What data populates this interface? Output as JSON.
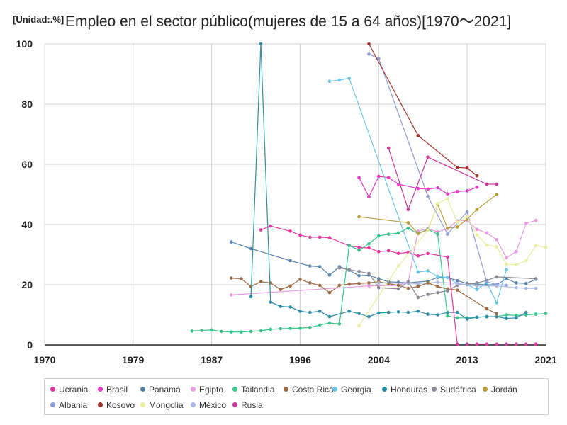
{
  "unit_label": "[Unidad:.%]",
  "title": "Empleo en el sector público(mujeres de 15 a 64 años)[1970～2021]",
  "chart_data": {
    "type": "line",
    "title": "Empleo en el sector público(mujeres de 15 a 64 años)[1970～2021]",
    "unit": "[Unidad:.%]",
    "xlim": [
      1970,
      2021
    ],
    "ylim": [
      0,
      100
    ],
    "x_ticks": [
      1970,
      1979,
      1987,
      1996,
      2004,
      2013,
      2021
    ],
    "y_ticks": [
      0,
      20,
      40,
      60,
      80,
      100
    ],
    "grid": true,
    "legend_position": "bottom",
    "series": [
      {
        "name": "Ucrania",
        "color": "#e2389e",
        "points": [
          [
            1992,
            38.2
          ],
          [
            1993,
            39.5
          ],
          [
            1995,
            37.8
          ],
          [
            1996,
            36.5
          ],
          [
            1997,
            35.8
          ],
          [
            1998,
            35.8
          ],
          [
            1999,
            35.6
          ],
          [
            2001,
            33.0
          ],
          [
            2002,
            32.4
          ],
          [
            2003,
            32.2
          ],
          [
            2004,
            31.0
          ],
          [
            2005,
            31.3
          ],
          [
            2006,
            30.4
          ],
          [
            2007,
            30.8
          ],
          [
            2008,
            29.6
          ],
          [
            2009,
            30.4
          ],
          [
            2011,
            29.2
          ]
        ]
      },
      {
        "name": "Brasil",
        "color": "#e838c6",
        "points": [
          [
            2002,
            55.6
          ],
          [
            2003,
            49.2
          ],
          [
            2004,
            56.0
          ],
          [
            2005,
            55.6
          ],
          [
            2006,
            53.4
          ],
          [
            2008,
            52.0
          ],
          [
            2009,
            51.8
          ],
          [
            2010,
            52.2
          ],
          [
            2011,
            50.2
          ],
          [
            2012,
            51.0
          ],
          [
            2013,
            51.2
          ],
          [
            2014,
            52.4
          ]
        ]
      },
      {
        "name": "Panamá",
        "color": "#5b84ad",
        "points": [
          [
            1989,
            34.2
          ],
          [
            1991,
            32.0
          ],
          [
            1995,
            28.0
          ],
          [
            1997,
            26.2
          ],
          [
            1998,
            26.0
          ],
          [
            1999,
            23.2
          ],
          [
            2000,
            26.0
          ],
          [
            2001,
            24.8
          ],
          [
            2002,
            23.0
          ],
          [
            2003,
            23.2
          ],
          [
            2004,
            22.0
          ],
          [
            2005,
            21.0
          ],
          [
            2006,
            20.8
          ],
          [
            2007,
            20.6
          ],
          [
            2009,
            21.2
          ],
          [
            2010,
            22.4
          ],
          [
            2011,
            22.4
          ],
          [
            2012,
            21.4
          ],
          [
            2013,
            20.4
          ],
          [
            2014,
            20.2
          ],
          [
            2015,
            20.0
          ],
          [
            2016,
            20.0
          ],
          [
            2017,
            22.0
          ],
          [
            2018,
            20.6
          ],
          [
            2019,
            20.4
          ],
          [
            2020,
            21.8
          ]
        ]
      },
      {
        "name": "Egipto",
        "color": "#ea9ae0",
        "points": [
          [
            1989,
            16.6
          ],
          [
            2003,
            19.6
          ],
          [
            2006,
            19.8
          ],
          [
            2007,
            21.0
          ],
          [
            2008,
            37.8
          ],
          [
            2009,
            38.6
          ],
          [
            2010,
            37.6
          ],
          [
            2011,
            38.6
          ],
          [
            2012,
            41.2
          ],
          [
            2013,
            41.4
          ],
          [
            2014,
            38.4
          ],
          [
            2015,
            37.2
          ],
          [
            2016,
            35.0
          ],
          [
            2017,
            29.0
          ],
          [
            2018,
            31.0
          ],
          [
            2019,
            40.4
          ],
          [
            2020,
            41.4
          ]
        ]
      },
      {
        "name": "Tailandia",
        "color": "#38c48a",
        "points": [
          [
            1985,
            4.6
          ],
          [
            1986,
            4.8
          ],
          [
            1987,
            5.0
          ],
          [
            1988,
            4.5
          ],
          [
            1989,
            4.3
          ],
          [
            1990,
            4.3
          ],
          [
            1991,
            4.5
          ],
          [
            1992,
            4.7
          ],
          [
            1993,
            5.2
          ],
          [
            1994,
            5.4
          ],
          [
            1995,
            5.5
          ],
          [
            1996,
            5.6
          ],
          [
            1997,
            5.8
          ],
          [
            1998,
            6.6
          ],
          [
            1999,
            7.3
          ],
          [
            2000,
            7.0
          ],
          [
            2001,
            33.0
          ],
          [
            2002,
            31.5
          ],
          [
            2003,
            33.6
          ],
          [
            2004,
            36.2
          ],
          [
            2005,
            36.8
          ],
          [
            2006,
            37.2
          ],
          [
            2007,
            38.8
          ],
          [
            2008,
            37.0
          ],
          [
            2009,
            38.4
          ],
          [
            2010,
            36.8
          ],
          [
            2011,
            9.6
          ],
          [
            2012,
            9.0
          ],
          [
            2013,
            9.0
          ],
          [
            2014,
            9.2
          ],
          [
            2015,
            9.4
          ],
          [
            2016,
            9.4
          ],
          [
            2017,
            10.0
          ],
          [
            2018,
            9.8
          ],
          [
            2019,
            10.0
          ],
          [
            2020,
            10.2
          ],
          [
            2021,
            10.4
          ]
        ]
      },
      {
        "name": "Costa Rica",
        "color": "#9c6a45",
        "points": [
          [
            1989,
            22.2
          ],
          [
            1990,
            22.0
          ],
          [
            1991,
            19.4
          ],
          [
            1992,
            21.0
          ],
          [
            1993,
            20.6
          ],
          [
            1994,
            18.4
          ],
          [
            1995,
            19.6
          ],
          [
            1996,
            21.8
          ],
          [
            1997,
            20.6
          ],
          [
            1998,
            19.8
          ],
          [
            1999,
            17.4
          ],
          [
            2000,
            19.8
          ],
          [
            2001,
            20.2
          ],
          [
            2002,
            20.4
          ],
          [
            2003,
            20.6
          ],
          [
            2004,
            21.0
          ],
          [
            2005,
            20.4
          ],
          [
            2006,
            19.8
          ],
          [
            2007,
            18.8
          ],
          [
            2008,
            19.4
          ],
          [
            2009,
            20.6
          ],
          [
            2010,
            19.4
          ],
          [
            2011,
            18.6
          ],
          [
            2012,
            18.2
          ],
          [
            2015,
            12.0
          ],
          [
            2016,
            10.4
          ]
        ]
      },
      {
        "name": "Georgia",
        "color": "#6cc6ea",
        "points": [
          [
            1999,
            87.6
          ],
          [
            2000,
            88.0
          ],
          [
            2001,
            88.6
          ],
          [
            2008,
            24.2
          ],
          [
            2009,
            24.6
          ],
          [
            2010,
            22.8
          ],
          [
            2011,
            22.4
          ],
          [
            2012,
            20.4
          ],
          [
            2013,
            20.0
          ],
          [
            2014,
            18.4
          ],
          [
            2015,
            20.8
          ],
          [
            2016,
            14.0
          ],
          [
            2017,
            25.0
          ]
        ]
      },
      {
        "name": "Honduras",
        "color": "#2e8ea6",
        "points": [
          [
            1991,
            16.0
          ],
          [
            1992,
            100.0
          ],
          [
            1993,
            14.2
          ],
          [
            1994,
            12.8
          ],
          [
            1995,
            12.6
          ],
          [
            1996,
            11.2
          ],
          [
            1997,
            10.8
          ],
          [
            1998,
            11.2
          ],
          [
            1999,
            9.4
          ],
          [
            2001,
            11.2
          ],
          [
            2002,
            10.4
          ],
          [
            2003,
            9.4
          ],
          [
            2004,
            10.6
          ],
          [
            2005,
            10.8
          ],
          [
            2006,
            11.0
          ],
          [
            2007,
            10.8
          ],
          [
            2008,
            11.2
          ],
          [
            2009,
            10.2
          ],
          [
            2010,
            10.0
          ],
          [
            2011,
            10.8
          ],
          [
            2012,
            10.8
          ],
          [
            2013,
            8.6
          ],
          [
            2014,
            9.2
          ],
          [
            2015,
            9.4
          ],
          [
            2016,
            9.4
          ],
          [
            2017,
            8.8
          ],
          [
            2018,
            9.0
          ],
          [
            2019,
            10.8
          ]
        ]
      },
      {
        "name": "Sudáfrica",
        "color": "#8a8a96",
        "points": [
          [
            2000,
            25.6
          ],
          [
            2001,
            25.0
          ],
          [
            2002,
            24.4
          ],
          [
            2003,
            23.8
          ],
          [
            2004,
            19.0
          ],
          [
            2006,
            18.6
          ],
          [
            2007,
            21.0
          ],
          [
            2008,
            15.8
          ],
          [
            2009,
            16.8
          ],
          [
            2010,
            17.4
          ],
          [
            2011,
            18.0
          ],
          [
            2012,
            19.8
          ],
          [
            2013,
            20.2
          ],
          [
            2014,
            20.6
          ],
          [
            2015,
            21.4
          ],
          [
            2016,
            22.6
          ],
          [
            2020,
            22.0
          ]
        ]
      },
      {
        "name": "Jordán",
        "color": "#b89e3a",
        "points": [
          [
            2002,
            42.6
          ],
          [
            2007,
            40.6
          ],
          [
            2008,
            37.0
          ],
          [
            2009,
            38.2
          ],
          [
            2010,
            46.8
          ],
          [
            2011,
            38.8
          ],
          [
            2012,
            39.2
          ],
          [
            2013,
            41.8
          ],
          [
            2014,
            45.0
          ],
          [
            2016,
            50.0
          ]
        ]
      },
      {
        "name": "Albania",
        "color": "#8d9cd6",
        "points": [
          [
            2003,
            96.6
          ],
          [
            2004,
            95.2
          ],
          [
            2009,
            49.4
          ],
          [
            2011,
            36.8
          ],
          [
            2013,
            44.2
          ],
          [
            2015,
            21.0
          ],
          [
            2016,
            20.0
          ],
          [
            2017,
            19.8
          ]
        ]
      },
      {
        "name": "Kosovo",
        "color": "#a0342e",
        "points": [
          [
            2003,
            100.0
          ],
          [
            2008,
            69.6
          ],
          [
            2012,
            59.0
          ],
          [
            2013,
            58.8
          ],
          [
            2014,
            56.2
          ]
        ]
      },
      {
        "name": "Mongolia",
        "color": "#e8ef9e",
        "points": [
          [
            2002,
            6.4
          ],
          [
            2006,
            26.2
          ],
          [
            2009,
            38.0
          ],
          [
            2010,
            47.0
          ],
          [
            2011,
            48.6
          ],
          [
            2012,
            40.8
          ],
          [
            2013,
            42.6
          ],
          [
            2014,
            36.6
          ],
          [
            2015,
            33.2
          ],
          [
            2016,
            32.6
          ],
          [
            2017,
            26.8
          ],
          [
            2018,
            26.6
          ],
          [
            2019,
            28.0
          ],
          [
            2020,
            33.0
          ],
          [
            2021,
            32.4
          ]
        ]
      },
      {
        "name": "México",
        "color": "#aab8e6",
        "points": [
          [
            2004,
            20.6
          ],
          [
            2008,
            20.4
          ],
          [
            2010,
            20.8
          ],
          [
            2012,
            20.4
          ],
          [
            2014,
            19.6
          ],
          [
            2016,
            19.6
          ],
          [
            2018,
            19.0
          ],
          [
            2019,
            18.8
          ],
          [
            2020,
            18.8
          ]
        ]
      },
      {
        "name": "Rusia",
        "color": "#c8389a",
        "points": [
          [
            2005,
            65.4
          ],
          [
            2007,
            45.0
          ],
          [
            2009,
            62.4
          ],
          [
            2015,
            53.4
          ],
          [
            2016,
            53.4
          ]
        ]
      },
      {
        "name": "Ucrania (2013-2020)",
        "color": "#e2389e",
        "legend": false,
        "points": [
          [
            2011,
            29.2
          ],
          [
            2012,
            0.3
          ],
          [
            2013,
            0.3
          ],
          [
            2014,
            0.3
          ],
          [
            2015,
            0.3
          ],
          [
            2016,
            0.3
          ],
          [
            2017,
            0.3
          ],
          [
            2018,
            0.3
          ],
          [
            2019,
            0.3
          ],
          [
            2020,
            0.3
          ]
        ]
      }
    ]
  },
  "legend": [
    {
      "label": "Ucrania",
      "color": "#e2389e"
    },
    {
      "label": "Brasil",
      "color": "#e838c6"
    },
    {
      "label": "Panamá",
      "color": "#5b84ad"
    },
    {
      "label": "Egipto",
      "color": "#ea9ae0"
    },
    {
      "label": "Tailandia",
      "color": "#38c48a"
    },
    {
      "label": "Costa Rica",
      "color": "#9c6a45"
    },
    {
      "label": "Georgia",
      "color": "#6cc6ea"
    },
    {
      "label": "Honduras",
      "color": "#2e8ea6"
    },
    {
      "label": "Sudáfrica",
      "color": "#8a8a96"
    },
    {
      "label": "Jordán",
      "color": "#b89e3a"
    },
    {
      "label": "Albania",
      "color": "#8d9cd6"
    },
    {
      "label": "Kosovo",
      "color": "#a0342e"
    },
    {
      "label": "Mongolia",
      "color": "#e8ef9e"
    },
    {
      "label": "México",
      "color": "#aab8e6"
    },
    {
      "label": "Rusia",
      "color": "#c8389a"
    }
  ]
}
